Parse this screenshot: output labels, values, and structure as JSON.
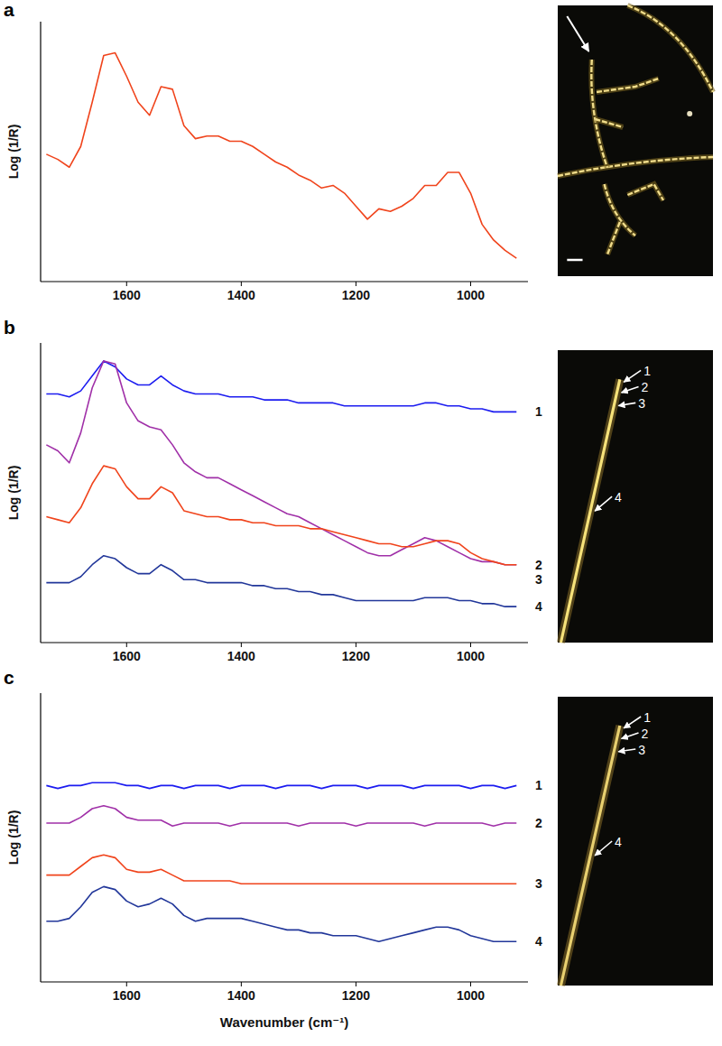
{
  "chart_data": [
    {
      "type": "line",
      "title": "a",
      "y_label": "Log (1/R)",
      "x": [
        1740,
        1720,
        1700,
        1680,
        1660,
        1640,
        1620,
        1600,
        1580,
        1560,
        1540,
        1520,
        1500,
        1480,
        1460,
        1440,
        1420,
        1400,
        1380,
        1360,
        1340,
        1320,
        1300,
        1280,
        1260,
        1240,
        1220,
        1200,
        1180,
        1160,
        1140,
        1120,
        1100,
        1080,
        1060,
        1040,
        1020,
        1000,
        980,
        960,
        940,
        920
      ],
      "xlim": [
        1750,
        900
      ],
      "xticks": [
        1600,
        1400,
        1200,
        1000
      ],
      "ylim": [
        0,
        100
      ],
      "tick_labels": "x",
      "series": [
        {
          "color": "#f0441c",
          "values": [
            49,
            47,
            44,
            52,
            69,
            87,
            88,
            79,
            69,
            64,
            75,
            74,
            60,
            55,
            56,
            56,
            54,
            54,
            52,
            49,
            46,
            44,
            41,
            39,
            36,
            37,
            34,
            29,
            24,
            28,
            27,
            29,
            32,
            37,
            37,
            42,
            42,
            34,
            22,
            16,
            12,
            9
          ]
        }
      ]
    },
    {
      "type": "line",
      "title": "b",
      "y_label": "Log (1/R)",
      "x": [
        1740,
        1720,
        1700,
        1680,
        1660,
        1640,
        1620,
        1600,
        1580,
        1560,
        1540,
        1520,
        1500,
        1480,
        1460,
        1440,
        1420,
        1400,
        1380,
        1360,
        1340,
        1320,
        1300,
        1280,
        1260,
        1240,
        1220,
        1200,
        1180,
        1160,
        1140,
        1120,
        1100,
        1080,
        1060,
        1040,
        1020,
        1000,
        980,
        960,
        940,
        920
      ],
      "xlim": [
        1750,
        900
      ],
      "xticks": [
        1600,
        1400,
        1200,
        1000
      ],
      "ylim": [
        0,
        100
      ],
      "tick_labels": "x",
      "series": [
        {
          "name": "1",
          "color": "#1c1cf0",
          "values": [
            83,
            83,
            82,
            84,
            89,
            94,
            92,
            88,
            86,
            86,
            89,
            86,
            84,
            83,
            83,
            83,
            82,
            82,
            82,
            81,
            81,
            81,
            80,
            80,
            80,
            80,
            79,
            79,
            79,
            79,
            79,
            79,
            79,
            80,
            80,
            79,
            79,
            78,
            78,
            77,
            77,
            77
          ]
        },
        {
          "name": "2",
          "color": "#a030a8",
          "values": [
            66,
            64,
            60,
            70,
            85,
            94,
            93,
            80,
            74,
            72,
            71,
            66,
            60,
            57,
            55,
            55,
            53,
            51,
            49,
            47,
            45,
            43,
            42,
            40,
            38,
            36,
            34,
            32,
            30,
            29,
            29,
            31,
            33,
            35,
            34,
            32,
            30,
            28,
            27,
            27,
            26,
            26
          ]
        },
        {
          "name": "3",
          "color": "#f0441c",
          "values": [
            42,
            41,
            40,
            45,
            53,
            59,
            58,
            52,
            48,
            48,
            52,
            50,
            44,
            43,
            42,
            42,
            41,
            41,
            40,
            40,
            39,
            39,
            39,
            38,
            38,
            37,
            36,
            35,
            34,
            33,
            33,
            32,
            32,
            33,
            34,
            34,
            33,
            30,
            28,
            27,
            26,
            26
          ]
        },
        {
          "name": "4",
          "color": "#22379a",
          "values": [
            20,
            20,
            20,
            22,
            26,
            29,
            28,
            25,
            23,
            23,
            26,
            24,
            21,
            21,
            20,
            20,
            20,
            20,
            19,
            19,
            18,
            18,
            17,
            17,
            16,
            16,
            15,
            14,
            14,
            14,
            14,
            14,
            14,
            15,
            15,
            15,
            14,
            14,
            13,
            13,
            12,
            12
          ]
        }
      ],
      "image_labels": [
        "1",
        "2",
        "3",
        "4"
      ]
    },
    {
      "type": "line",
      "title": "c",
      "y_label": "Log (1/R)",
      "x_label": "Wavenumber (cm⁻¹)",
      "x": [
        1740,
        1720,
        1700,
        1680,
        1660,
        1640,
        1620,
        1600,
        1580,
        1560,
        1540,
        1520,
        1500,
        1480,
        1460,
        1440,
        1420,
        1400,
        1380,
        1360,
        1340,
        1320,
        1300,
        1280,
        1260,
        1240,
        1220,
        1200,
        1180,
        1160,
        1140,
        1120,
        1100,
        1080,
        1060,
        1040,
        1020,
        1000,
        980,
        960,
        940,
        920
      ],
      "xlim": [
        1750,
        900
      ],
      "xticks": [
        1600,
        1400,
        1200,
        1000
      ],
      "ylim": [
        0,
        100
      ],
      "tick_labels": "x",
      "series": [
        {
          "name": "1",
          "color": "#1c1cf0",
          "values": [
            68,
            67,
            68,
            68,
            69,
            69,
            69,
            68,
            68,
            67,
            68,
            68,
            67,
            68,
            68,
            68,
            67,
            68,
            68,
            68,
            67,
            68,
            68,
            68,
            67,
            68,
            68,
            68,
            67,
            68,
            68,
            68,
            67,
            68,
            68,
            68,
            68,
            67,
            68,
            68,
            67,
            68
          ]
        },
        {
          "name": "2",
          "color": "#a030a8",
          "values": [
            55,
            55,
            55,
            57,
            60,
            61,
            60,
            57,
            56,
            56,
            56,
            54,
            55,
            55,
            55,
            55,
            54,
            55,
            55,
            55,
            55,
            55,
            54,
            55,
            55,
            55,
            55,
            54,
            55,
            55,
            55,
            55,
            55,
            54,
            55,
            55,
            55,
            55,
            55,
            54,
            55,
            55
          ]
        },
        {
          "name": "3",
          "color": "#f0441c",
          "values": [
            37,
            37,
            37,
            40,
            43,
            44,
            43,
            39,
            38,
            38,
            39,
            37,
            35,
            35,
            35,
            35,
            35,
            34,
            34,
            34,
            34,
            34,
            34,
            34,
            34,
            34,
            34,
            34,
            34,
            34,
            34,
            34,
            34,
            34,
            34,
            34,
            34,
            34,
            34,
            34,
            34,
            34
          ]
        },
        {
          "name": "4",
          "color": "#22379a",
          "values": [
            21,
            21,
            22,
            26,
            31,
            33,
            32,
            28,
            26,
            27,
            29,
            27,
            23,
            21,
            22,
            22,
            22,
            22,
            21,
            20,
            19,
            18,
            18,
            17,
            17,
            16,
            16,
            16,
            15,
            14,
            15,
            16,
            17,
            18,
            19,
            19,
            18,
            16,
            15,
            14,
            14,
            14
          ]
        }
      ],
      "image_labels": [
        "1",
        "2",
        "3",
        "4"
      ]
    }
  ]
}
